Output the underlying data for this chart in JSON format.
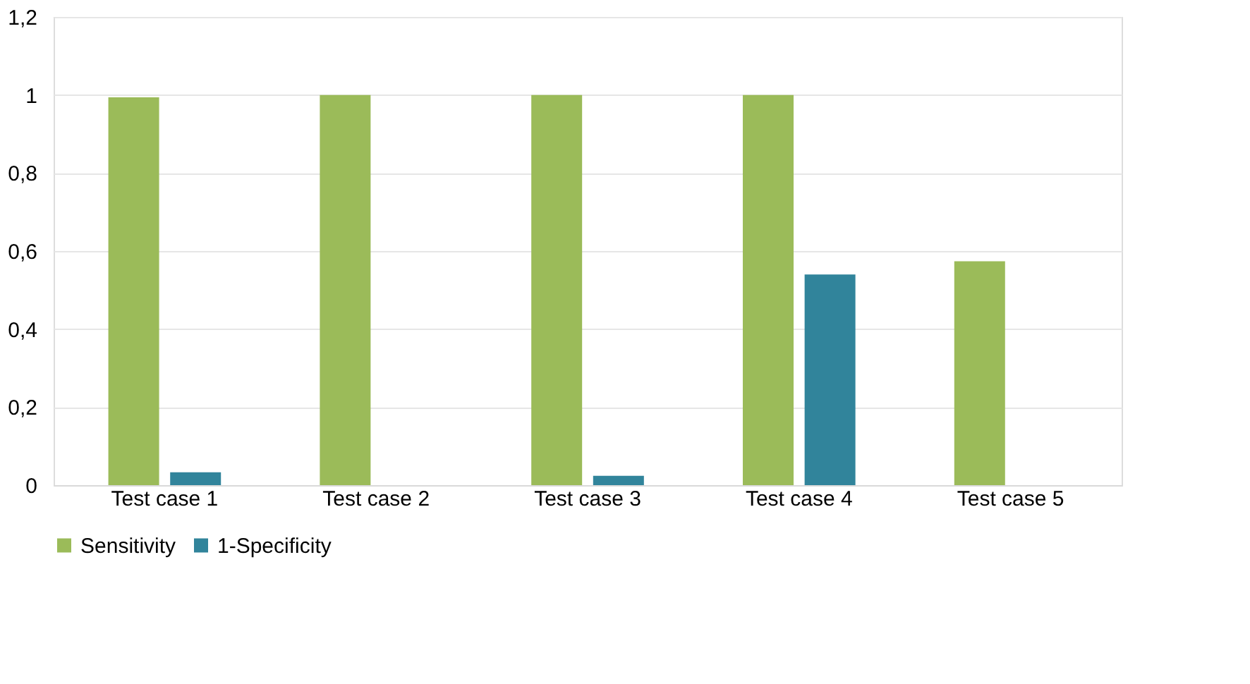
{
  "chart_data": {
    "type": "bar",
    "categories": [
      "Test case 1",
      "Test case 2",
      "Test case 3",
      "Test case 4",
      "Test case 5"
    ],
    "series": [
      {
        "name": "Sensitivity",
        "color": "#9bbb59",
        "values": [
          0.994,
          1,
          1,
          1,
          0.574
        ]
      },
      {
        "name": "1-Specificity",
        "color": "#31849b",
        "values": [
          0.033,
          0,
          0.024,
          0.54,
          0
        ]
      }
    ],
    "ylim": [
      0,
      1.2
    ],
    "yticks": [
      0,
      {
        "value": 0.2,
        "label": "0,2"
      },
      {
        "value": 0.4,
        "label": "0,4"
      },
      {
        "value": 0.6,
        "label": "0,6"
      },
      {
        "value": 0.8,
        "label": "0,8"
      },
      1,
      {
        "value": 1.2,
        "label": "1,2"
      }
    ],
    "grid": "y",
    "legend": "bottom"
  }
}
